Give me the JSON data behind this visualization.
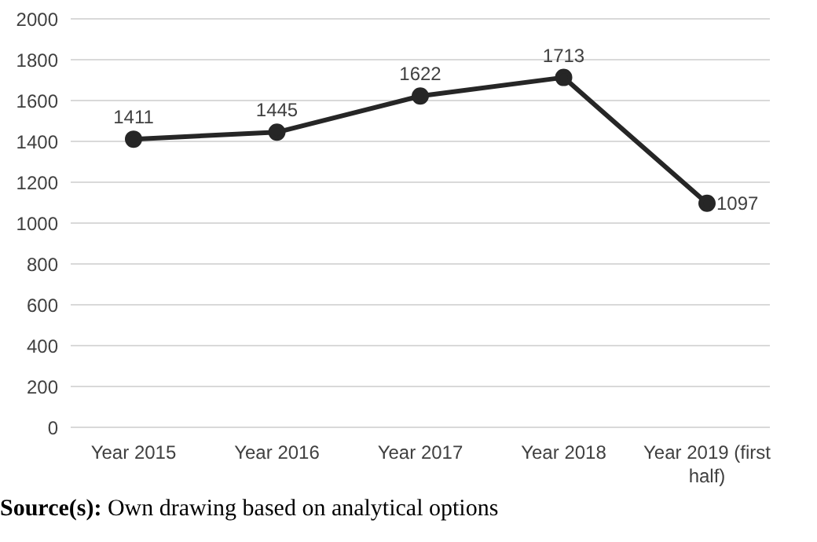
{
  "chart_data": {
    "type": "line",
    "categories": [
      "Year 2015",
      "Year 2016",
      "Year 2017",
      "Year 2018",
      "Year 2019 (first half)"
    ],
    "series": [
      {
        "color": "#262626",
        "values": [
          1411,
          1445,
          1622,
          1713,
          1097
        ]
      }
    ],
    "ylim": [
      0,
      2000
    ],
    "yticks": [
      0,
      200,
      400,
      600,
      800,
      1000,
      1200,
      1400,
      1600,
      1800,
      2000
    ],
    "grid": "y",
    "marker": "circle",
    "line_style": "solid",
    "data_labels": true,
    "annotations": [
      "Source(s): Own drawing based on analytical options"
    ]
  }
}
